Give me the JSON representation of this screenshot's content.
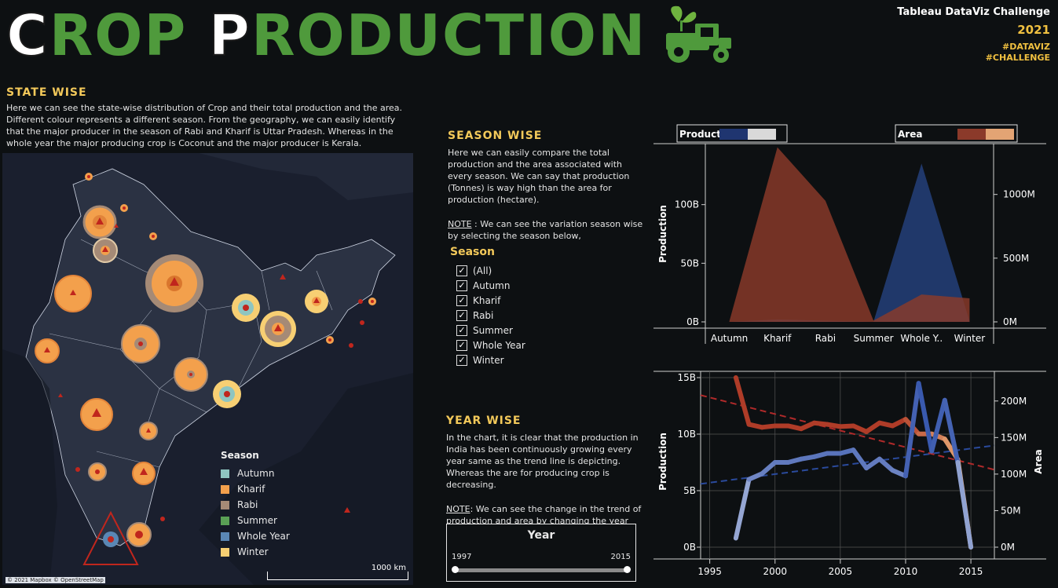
{
  "header": {
    "title_c": "C",
    "title_rop": "ROP ",
    "title_p": "P",
    "title_roduction": "RODUCTION",
    "brand_line1": "Tableau DataViz Challenge",
    "brand_line2": "2021",
    "brand_line3": "#DATAVIZ",
    "brand_line4": "#CHALLENGE"
  },
  "state": {
    "heading": "STATE WISE",
    "text": "Here we can see the state-wise distribution of Crop and their total production and the area. Different colour represents a different season. From the geography, we can easily identify that the major producer in the season of Rabi and Kharif is Uttar Pradesh. Whereas in the whole year the major producing crop is Coconut and the major producer is Kerala.",
    "map_credit": "© 2021 Mapbox © OpenStreetMap",
    "scale_label": "1000 km",
    "legend_title": "Season",
    "legend": [
      {
        "label": "Autumn",
        "color": "#8ec5c1"
      },
      {
        "label": "Kharif",
        "color": "#f3a04c"
      },
      {
        "label": "Rabi",
        "color": "#a58a76"
      },
      {
        "label": "Summer",
        "color": "#5aa055"
      },
      {
        "label": "Whole Year",
        "color": "#5a87b5"
      },
      {
        "label": "Winter",
        "color": "#f7cf73"
      }
    ]
  },
  "season": {
    "heading": "SEASON WISE",
    "text": "Here we can easily compare the total production and the area associated with every season. We can say that production (Tonnes) is way high than the area for production (hectare).",
    "note_label": "NOTE",
    "note_text": " : We can see the  variation season wise by selecting the season below,",
    "filter_title": "Season",
    "filter_items": [
      "(All)",
      "Autumn",
      "Kharif",
      "Rabi",
      "Summer",
      "Whole Year",
      "Winter"
    ]
  },
  "year": {
    "heading": "YEAR WISE",
    "text": "In the chart, it is clear that the production in India has been continuously growing every year same as the trend line is depicting. Whereas the are for producing crop is decreasing.",
    "note_label": "NOTE",
    "note_text": ": We can see the change in the trend of production and area by changing the year below,",
    "slider_title": "Year",
    "slider_min": "1997",
    "slider_max": "2015"
  },
  "chart_data": [
    {
      "type": "area",
      "legend": [
        {
          "label": "Production",
          "colors": [
            "#1f3570",
            "#d9d9d9"
          ]
        },
        {
          "label": "Area",
          "colors": [
            "#8b3a2a",
            "#e3a474"
          ]
        }
      ],
      "categories": [
        "Autumn",
        "Kharif",
        "Rabi",
        "Summer",
        "Whole Y..",
        "Winter"
      ],
      "ylabel": "Production",
      "yticks": [
        "0B",
        "50B",
        "100B"
      ],
      "y2ticks": [
        "0M",
        "500M",
        "1000M"
      ],
      "ylim": [
        0,
        150
      ],
      "y2lim": [
        0,
        1380
      ],
      "series": [
        {
          "name": "Production",
          "axis": "y",
          "values": [
            0.1,
            2.0,
            1.0,
            0.05,
            135.0,
            0.5
          ],
          "color": "#25407a"
        },
        {
          "name": "Area",
          "axis": "y2",
          "values": [
            5,
            1370,
            950,
            10,
            215,
            185
          ],
          "color": "#8b3a2a"
        }
      ]
    },
    {
      "type": "line",
      "x": [
        1997,
        1998,
        1999,
        2000,
        2001,
        2002,
        2003,
        2004,
        2005,
        2006,
        2007,
        2008,
        2009,
        2010,
        2011,
        2012,
        2013,
        2014,
        2015
      ],
      "xticks": [
        "1995",
        "2000",
        "2005",
        "2010",
        "2015"
      ],
      "xlim": [
        1994.3,
        2016.8
      ],
      "ylabel": "Production",
      "y2label": "Area",
      "yticks": [
        "0B",
        "5B",
        "10B",
        "15B"
      ],
      "y2ticks": [
        "0M",
        "50M",
        "100M",
        "150M",
        "200M"
      ],
      "ylim": [
        0,
        15
      ],
      "y2lim": [
        0,
        232
      ],
      "series": [
        {
          "name": "Production",
          "axis": "y",
          "values": [
            0.8,
            6.0,
            6.5,
            7.5,
            7.5,
            7.8,
            8.0,
            8.3,
            8.3,
            8.6,
            7.0,
            7.8,
            6.8,
            6.3,
            14.5,
            8.5,
            13.0,
            7.5,
            0.0
          ]
        },
        {
          "name": "Area",
          "axis": "y2",
          "values": [
            232,
            168,
            164,
            166,
            166,
            162,
            170,
            168,
            165,
            166,
            158,
            170,
            166,
            175,
            155,
            155,
            148,
            120,
            0
          ]
        },
        {
          "name": "Production trend",
          "axis": "y",
          "values_at_xlim": [
            5.6,
            9.0
          ]
        },
        {
          "name": "Area trend",
          "axis": "y2",
          "values_at_xlim": [
            208,
            106
          ]
        }
      ]
    }
  ]
}
